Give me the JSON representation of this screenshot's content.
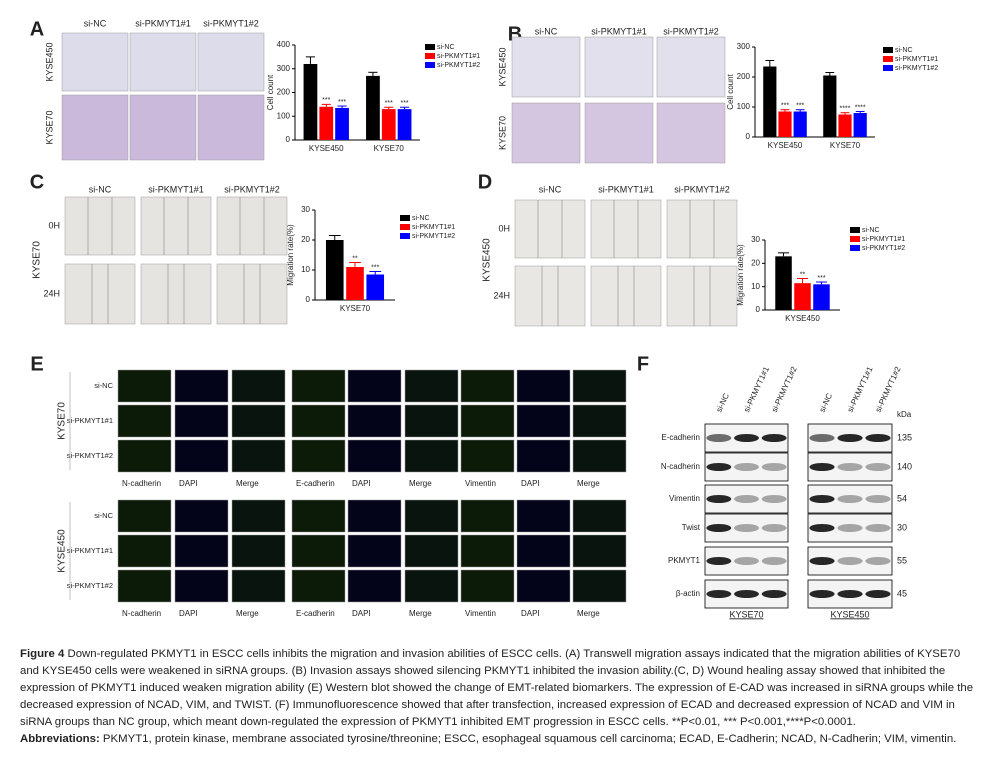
{
  "panels": {
    "A": {
      "letter": "A",
      "columns": [
        "si-NC",
        "si-PKMYT1#1",
        "si-PKMYT1#2"
      ],
      "rows": [
        "KYSE450",
        "KYSE70"
      ],
      "chart_data": {
        "type": "bar",
        "ylabel": "Cell count",
        "categories": [
          "KYSE450",
          "KYSE70"
        ],
        "ylim": [
          0,
          400
        ],
        "yticks": [
          0,
          100,
          200,
          300,
          400
        ],
        "legend": "right",
        "series": [
          {
            "name": "si-NC",
            "color": "#000000",
            "values": [
              320,
              270
            ],
            "errors": [
              30,
              15
            ]
          },
          {
            "name": "si-PKMYT1#1",
            "color": "#ff0000",
            "values": [
              140,
              130
            ],
            "errors": [
              10,
              8
            ],
            "labels": [
              "***",
              "***"
            ]
          },
          {
            "name": "si-PKMYT1#2",
            "color": "#0000ff",
            "values": [
              135,
              130
            ],
            "errors": [
              8,
              8
            ],
            "labels": [
              "***",
              "***"
            ]
          }
        ]
      }
    },
    "B": {
      "letter": "B",
      "columns": [
        "si-NC",
        "si-PKMYT1#1",
        "si-PKMYT1#2"
      ],
      "rows": [
        "KYSE450",
        "KYSE70"
      ],
      "chart_data": {
        "type": "bar",
        "ylabel": "Cell count",
        "categories": [
          "KYSE450",
          "KYSE70"
        ],
        "ylim": [
          0,
          300
        ],
        "yticks": [
          0,
          100,
          200,
          300
        ],
        "legend": "right",
        "series": [
          {
            "name": "si-NC",
            "color": "#000000",
            "values": [
              235,
              205
            ],
            "errors": [
              20,
              10
            ]
          },
          {
            "name": "si-PKMYT1#1",
            "color": "#ff0000",
            "values": [
              85,
              75
            ],
            "errors": [
              6,
              6
            ],
            "labels": [
              "***",
              "****"
            ]
          },
          {
            "name": "si-PKMYT1#2",
            "color": "#0000ff",
            "values": [
              85,
              80
            ],
            "errors": [
              6,
              5
            ],
            "labels": [
              "***",
              "****"
            ]
          }
        ]
      }
    },
    "C": {
      "letter": "C",
      "columns": [
        "si-NC",
        "si-PKMYT1#1",
        "si-PKMYT1#2"
      ],
      "rows": [
        "0H",
        "24H"
      ],
      "cell_line": "KYSE70",
      "chart_data": {
        "type": "bar",
        "ylabel": "Migration rate(%)",
        "categories": [
          "KYSE70"
        ],
        "ylim": [
          0,
          30
        ],
        "yticks": [
          0,
          10,
          20,
          30
        ],
        "legend": "right",
        "series": [
          {
            "name": "si-NC",
            "color": "#000000",
            "values": [
              20
            ],
            "errors": [
              1.5
            ]
          },
          {
            "name": "si-PKMYT1#1",
            "color": "#ff0000",
            "values": [
              11
            ],
            "errors": [
              1.5
            ],
            "labels": [
              "**"
            ]
          },
          {
            "name": "si-PKMYT1#2",
            "color": "#0000ff",
            "values": [
              8.5
            ],
            "errors": [
              1
            ],
            "labels": [
              "***"
            ]
          }
        ]
      }
    },
    "D": {
      "letter": "D",
      "columns": [
        "si-NC",
        "si-PKMYT1#1",
        "si-PKMYT1#2"
      ],
      "rows": [
        "0H",
        "24H"
      ],
      "cell_line": "KYSE450",
      "chart_data": {
        "type": "bar",
        "ylabel": "Migration rate(%)",
        "categories": [
          "KYSE450"
        ],
        "ylim": [
          0,
          30
        ],
        "yticks": [
          0,
          10,
          20,
          30
        ],
        "legend": "right",
        "series": [
          {
            "name": "si-NC",
            "color": "#000000",
            "values": [
              23
            ],
            "errors": [
              1.5
            ]
          },
          {
            "name": "si-PKMYT1#1",
            "color": "#ff0000",
            "values": [
              11.5
            ],
            "errors": [
              2
            ],
            "labels": [
              "**"
            ]
          },
          {
            "name": "si-PKMYT1#2",
            "color": "#0000ff",
            "values": [
              11
            ],
            "errors": [
              1
            ],
            "labels": [
              "***"
            ]
          }
        ]
      }
    },
    "E": {
      "letter": "E",
      "blocks": [
        {
          "cell_line": "KYSE70",
          "rows": [
            "si-NC",
            "si-PKMYT1#1",
            "si-PKMYT1#2"
          ],
          "columns": [
            "N-cadherin",
            "DAPI",
            "Merge",
            "E-cadherin",
            "DAPI",
            "Merge",
            "Vimentin",
            "DAPI",
            "Merge"
          ]
        },
        {
          "cell_line": "KYSE450",
          "rows": [
            "si-NC",
            "si-PKMYT1#1",
            "si-PKMYT1#2"
          ],
          "columns": [
            "N-cadherin",
            "DAPI",
            "Merge",
            "E-cadherin",
            "DAPI",
            "Merge",
            "Vimentin",
            "DAPI",
            "Merge"
          ]
        }
      ]
    },
    "F": {
      "letter": "F",
      "unit": "kDa",
      "blots": [
        {
          "cell_line": "KYSE70",
          "lanes": [
            "si-NC",
            "si-PKMYT1#1",
            "si-PKMYT1#2"
          ]
        },
        {
          "cell_line": "KYSE450",
          "lanes": [
            "si-NC",
            "si-PKMYT1#1",
            "si-PKMYT1#2"
          ]
        }
      ],
      "proteins": [
        {
          "name": "E-cadherin",
          "kda": 135
        },
        {
          "name": "N-cadherin",
          "kda": 140
        },
        {
          "name": "Vimentin",
          "kda": 54
        },
        {
          "name": "Twist",
          "kda": 30
        },
        {
          "name": "PKMYT1",
          "kda": 55
        },
        {
          "name": "β-actin",
          "kda": 45
        }
      ]
    }
  },
  "caption": {
    "label": "Figure 4",
    "text": "Down-regulated PKMYT1 in ESCC cells inhibits the migration and invasion abilities of ESCC cells. (A) Transwell migration assays indicated that the migration abilities of KYSE70 and KYSE450 cells were weakened in siRNA groups. (B) Invasion assays showed silencing PKMYT1 inhibited the invasion ability.(C, D) Wound healing assay showed that inhibited the expression of PKMYT1 induced weaken migration ability (E) Western blot showed the change of EMT-related biomarkers. The expression of E-CAD was increased in siRNA groups while the decreased expression of NCAD, VIM, and TWIST. (F) Immunofluorescence showed that after transfection, increased expression of ECAD and decreased expression of NCAD and VIM in siRNA groups than NC group, which meant down-regulated the expression of PKMYT1 inhibited EMT progression in ESCC cells. **P<0.01, *** P<0.001,****P<0.0001.",
    "abbreviations_label": "Abbreviations:",
    "abbreviations_text": "PKMYT1, protein kinase, membrane associated tyrosine/threonine; ESCC, esophageal squamous cell carcinoma; ECAD, E-Cadherin; NCAD, N-Cadherin; VIM, vimentin."
  }
}
